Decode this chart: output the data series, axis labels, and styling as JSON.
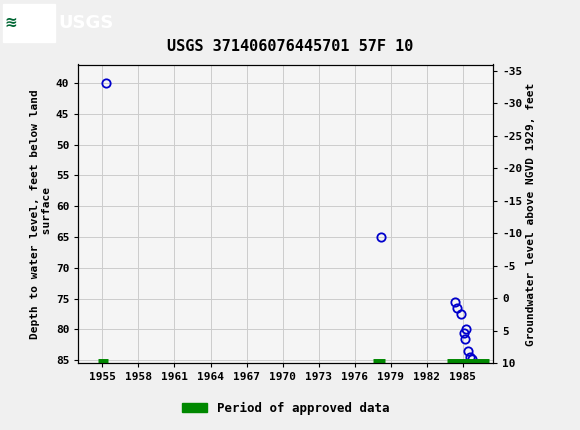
{
  "title": "USGS 371406076445701 57F 10",
  "ylabel_left": "Depth to water level, feet below land\n surface",
  "ylabel_right": "Groundwater level above NGVD 1929, feet",
  "header_color": "#006633",
  "background_color": "#f0f0f0",
  "plot_bg_color": "#f5f5f5",
  "grid_color": "#cccccc",
  "point_color": "#0000cc",
  "approved_color": "#008800",
  "ylim_left": [
    85.5,
    37.0
  ],
  "ylim_right_top": 10,
  "ylim_right_bottom": -36,
  "xlim": [
    1953.0,
    1987.5
  ],
  "xticks": [
    1955,
    1958,
    1961,
    1964,
    1967,
    1970,
    1973,
    1976,
    1979,
    1982,
    1985
  ],
  "yticks_left": [
    40,
    45,
    50,
    55,
    60,
    65,
    70,
    75,
    80,
    85
  ],
  "yticks_right": [
    10,
    5,
    0,
    -5,
    -10,
    -15,
    -20,
    -25,
    -30,
    -35
  ],
  "data_points_x": [
    1955.3,
    1978.2,
    1984.3,
    1984.5,
    1984.8,
    1985.05,
    1985.15,
    1985.25,
    1985.45,
    1985.6,
    1985.75
  ],
  "data_points_y": [
    40.0,
    65.0,
    75.5,
    76.5,
    77.5,
    80.5,
    81.5,
    80.0,
    83.5,
    84.5,
    84.8
  ],
  "approved_bars": [
    {
      "xstart": 1954.6,
      "xend": 1955.5,
      "y": 85.2
    },
    {
      "xstart": 1977.5,
      "xend": 1978.5,
      "y": 85.2
    },
    {
      "xstart": 1983.7,
      "xend": 1987.2,
      "y": 85.2
    }
  ],
  "legend_label": "Period of approved data",
  "legend_color": "#008800",
  "title_fontsize": 11,
  "tick_fontsize": 8,
  "label_fontsize": 8
}
